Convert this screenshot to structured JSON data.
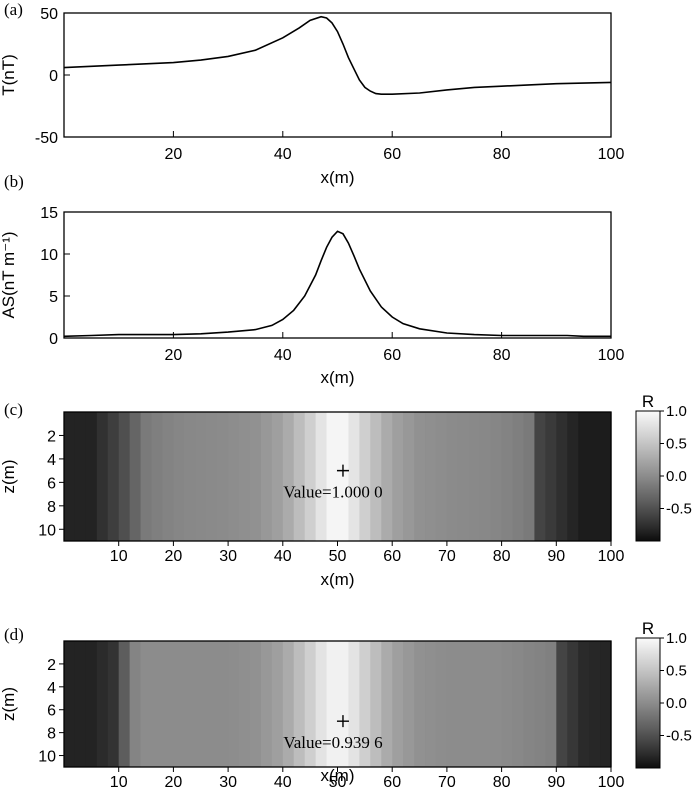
{
  "chart_data": [
    {
      "panel": "(a)",
      "type": "line",
      "xlabel": "x(m)",
      "ylabel": "T(nT)",
      "xlim": [
        0,
        100
      ],
      "ylim": [
        -50,
        50
      ],
      "x_ticks": [
        20,
        40,
        60,
        80,
        100
      ],
      "y_ticks": [
        -50,
        0,
        50
      ],
      "series": [
        {
          "x": [
            0,
            5,
            10,
            15,
            20,
            25,
            30,
            35,
            40,
            43,
            45,
            47,
            48,
            49,
            50,
            51,
            52,
            53,
            54,
            55,
            56,
            57,
            58,
            60,
            65,
            70,
            75,
            80,
            85,
            90,
            95,
            100
          ],
          "values": [
            6,
            7,
            8,
            9,
            10,
            12,
            15,
            20,
            30,
            38,
            44,
            47,
            46,
            42,
            35,
            25,
            14,
            5,
            -4,
            -10,
            -13,
            -15,
            -15.5,
            -15.5,
            -14.5,
            -12,
            -10,
            -9,
            -8,
            -7,
            -6.5,
            -6
          ]
        }
      ]
    },
    {
      "panel": "(b)",
      "type": "line",
      "xlabel": "x(m)",
      "ylabel": "AS(nT  m⁻¹)",
      "xlim": [
        0,
        100
      ],
      "ylim": [
        0,
        15
      ],
      "x_ticks": [
        20,
        40,
        60,
        80,
        100
      ],
      "y_ticks": [
        0,
        5,
        10,
        15
      ],
      "series": [
        {
          "x": [
            0,
            5,
            10,
            20,
            25,
            30,
            35,
            38,
            40,
            42,
            44,
            46,
            47,
            48,
            49,
            50,
            51,
            52,
            53,
            54,
            56,
            58,
            60,
            62,
            65,
            70,
            75,
            80,
            85,
            90,
            92,
            95,
            100
          ],
          "values": [
            0.2,
            0.3,
            0.4,
            0.4,
            0.5,
            0.7,
            1.0,
            1.5,
            2.2,
            3.3,
            5.0,
            7.5,
            9.2,
            10.8,
            12.0,
            12.7,
            12.4,
            11.3,
            9.8,
            8.2,
            5.6,
            3.7,
            2.5,
            1.7,
            1.1,
            0.6,
            0.4,
            0.3,
            0.3,
            0.3,
            0.3,
            0.2,
            0.2
          ]
        }
      ]
    },
    {
      "panel": "(c)",
      "type": "heatmap",
      "xlabel": "x(m)",
      "ylabel": "z(m)",
      "xlim": [
        0,
        100
      ],
      "ylim": [
        0,
        11
      ],
      "x_ticks": [
        10,
        20,
        30,
        40,
        50,
        60,
        70,
        80,
        90,
        100
      ],
      "y_ticks": [
        2,
        4,
        6,
        8,
        10
      ],
      "colorbar": {
        "label": "R",
        "ticks": [
          "1.0",
          "0.5",
          "0.0",
          "-0.5"
        ]
      },
      "columns_x": [
        0,
        5,
        10,
        15,
        20,
        30,
        35,
        40,
        45,
        48,
        50,
        52,
        55,
        60,
        65,
        70,
        80,
        85,
        87,
        92,
        95,
        100
      ],
      "columns_r": [
        -0.85,
        -0.85,
        -0.6,
        -0.15,
        -0.05,
        0.0,
        0.05,
        0.2,
        0.6,
        0.9,
        1.0,
        0.9,
        0.6,
        0.2,
        0.05,
        0.0,
        -0.05,
        -0.15,
        -0.6,
        -0.8,
        -0.9,
        -0.9
      ],
      "marker": {
        "x": 51,
        "z": 5
      },
      "annotation": "Value=1.000 0"
    },
    {
      "panel": "(d)",
      "type": "heatmap",
      "xlabel": "x(m)",
      "ylabel": "z(m)",
      "xlim": [
        0,
        100
      ],
      "ylim": [
        0,
        11
      ],
      "x_ticks": [
        10,
        20,
        30,
        40,
        50,
        60,
        70,
        80,
        90,
        100
      ],
      "y_ticks": [
        2,
        4,
        6,
        8,
        10
      ],
      "colorbar": {
        "label": "R",
        "ticks": [
          "1.0",
          "0.5",
          "0.0",
          "-0.5"
        ]
      },
      "columns_x": [
        0,
        5,
        10,
        12,
        15,
        30,
        35,
        40,
        45,
        48,
        50,
        52,
        55,
        60,
        65,
        70,
        80,
        89,
        91,
        95,
        100
      ],
      "columns_r": [
        -0.85,
        -0.85,
        -0.7,
        -0.1,
        0.0,
        0.0,
        0.05,
        0.2,
        0.6,
        0.88,
        0.95,
        0.88,
        0.6,
        0.2,
        0.05,
        0.0,
        0.0,
        -0.1,
        -0.6,
        -0.8,
        -0.85
      ],
      "marker": {
        "x": 51,
        "z": 7
      },
      "annotation": "Value=0.939 6"
    }
  ]
}
